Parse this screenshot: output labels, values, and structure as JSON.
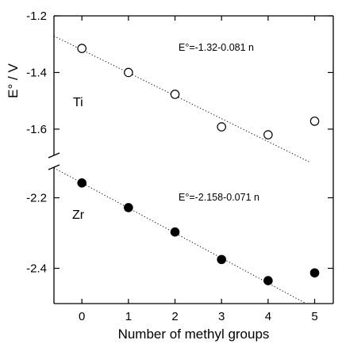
{
  "chart_data": {
    "type": "scatter",
    "xlabel": "Number of methyl groups",
    "ylabel": "E° / V",
    "x_ticks": [
      "0",
      "1",
      "2",
      "3",
      "4",
      "5"
    ],
    "xlim": [
      -0.6,
      5.4
    ],
    "grid": false,
    "panels": [
      {
        "series_label": "Ti",
        "y_ticks": [
          "-1.2",
          "-1.4",
          "-1.6"
        ],
        "y_tick_values": [
          -1.2,
          -1.4,
          -1.6
        ],
        "ylim": [
          -1.715,
          -1.2
        ],
        "marker": "open-circle",
        "x": [
          0,
          1,
          2,
          3,
          4,
          5
        ],
        "y": [
          -1.315,
          -1.4,
          -1.477,
          -1.592,
          -1.62,
          -1.572
        ],
        "fit": {
          "label": "E°=-1.32-0.081 n",
          "intercept": -1.32,
          "slope": -0.081
        }
      },
      {
        "series_label": "Zr",
        "y_ticks": [
          "-2.2",
          "-2.4"
        ],
        "y_tick_values": [
          -2.2,
          -2.4
        ],
        "ylim": [
          -2.5,
          -2.1
        ],
        "marker": "filled-circle",
        "x": [
          0,
          1,
          2,
          3,
          4,
          5
        ],
        "y": [
          -2.158,
          -2.228,
          -2.297,
          -2.375,
          -2.435,
          -2.413
        ],
        "fit": {
          "label": "E°=-2.158-0.071 n",
          "intercept": -2.158,
          "slope": -0.071
        }
      }
    ]
  }
}
